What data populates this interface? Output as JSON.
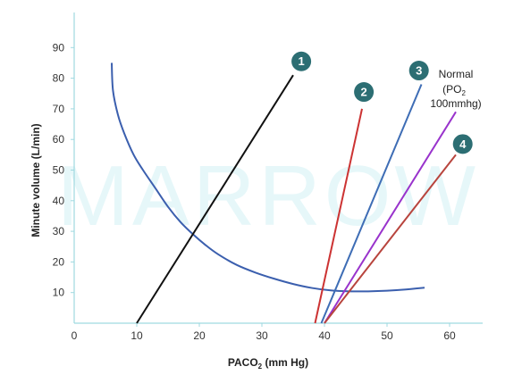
{
  "chart_data": {
    "type": "line",
    "xlabel_main": "PACO",
    "xlabel_sub": "2",
    "xlabel_unit": " (mm Hg)",
    "ylabel": "Minute volume (L/min)",
    "xlim": [
      0,
      65
    ],
    "ylim": [
      0,
      100
    ],
    "xticks": [
      0,
      10,
      20,
      30,
      40,
      50,
      60
    ],
    "yticks": [
      10,
      20,
      30,
      40,
      50,
      60,
      70,
      80,
      90
    ],
    "grid": false,
    "watermark": "MARROW",
    "hyperbola": {
      "color": "#3b5fae",
      "points": [
        [
          6,
          85
        ],
        [
          6.2,
          76
        ],
        [
          7,
          68
        ],
        [
          8,
          62
        ],
        [
          9.5,
          55
        ],
        [
          11,
          50
        ],
        [
          13,
          44
        ],
        [
          15,
          38
        ],
        [
          17,
          33
        ],
        [
          19,
          29
        ],
        [
          21,
          25.5
        ],
        [
          23,
          22.5
        ],
        [
          26,
          19
        ],
        [
          29,
          16.5
        ],
        [
          32,
          14.5
        ],
        [
          35,
          12.8
        ],
        [
          38,
          11.5
        ],
        [
          41,
          10.7
        ],
        [
          44,
          10.4
        ],
        [
          47,
          10.4
        ],
        [
          50,
          10.6
        ],
        [
          53,
          11.0
        ],
        [
          56,
          11.6
        ]
      ]
    },
    "series": [
      {
        "badge": "1",
        "color": "#111111",
        "x": [
          10,
          35
        ],
        "y": [
          0,
          81
        ],
        "badge_x": 36.3,
        "badge_y": 85.5
      },
      {
        "badge": "2",
        "color": "#cc3333",
        "x": [
          38.5,
          46
        ],
        "y": [
          0,
          70
        ],
        "badge_x": 46.3,
        "badge_y": 75.5
      },
      {
        "badge": "3",
        "color": "#3e6db5",
        "x": [
          39.5,
          55.5
        ],
        "y": [
          0,
          78
        ],
        "badge_x": 55.1,
        "badge_y": 82.5
      },
      {
        "badge": "",
        "color": "#9933cc",
        "x": [
          40,
          61
        ],
        "y": [
          0,
          69
        ]
      },
      {
        "badge": "4",
        "color": "#b8443d",
        "x": [
          40,
          61
        ],
        "y": [
          0,
          55
        ],
        "badge_x": 62.1,
        "badge_y": 58.5
      }
    ],
    "badge_color": "#2c6e73",
    "normal_label": {
      "line1": "Normal",
      "line2_prefix": "(PO",
      "line2_sub": "2",
      "line3": "100mmhg)"
    }
  }
}
